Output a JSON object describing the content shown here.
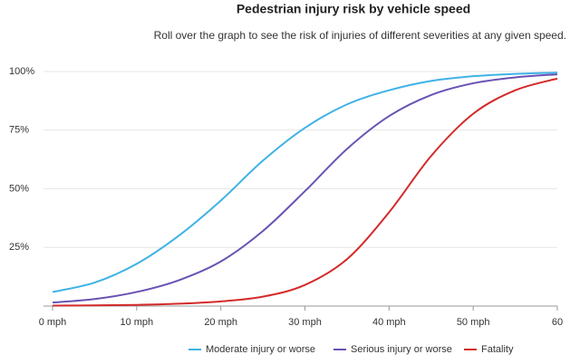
{
  "chart_data": {
    "type": "line",
    "title": "Pedestrian injury risk by vehicle speed",
    "subtitle": "Roll over the graph to see the risk of injuries of different severities at any given speed.",
    "x": [
      0,
      5,
      10,
      15,
      20,
      25,
      30,
      35,
      40,
      45,
      50,
      55,
      60
    ],
    "series": [
      {
        "name": "Moderate injury or worse",
        "color": "#3fb2e6",
        "values": [
          6,
          10,
          18,
          30,
          45,
          62,
          76,
          86,
          92,
          96,
          98,
          99,
          99.5
        ]
      },
      {
        "name": "Serious injury or worse",
        "color": "#6a52b3",
        "values": [
          1.5,
          3,
          6,
          11,
          19,
          32,
          49,
          67,
          81,
          90,
          95,
          97.5,
          98.8
        ]
      },
      {
        "name": "Fatality",
        "color": "#d42a2a",
        "values": [
          0.2,
          0.3,
          0.5,
          1,
          2,
          4,
          9,
          20,
          40,
          64,
          82,
          92,
          97
        ]
      }
    ],
    "xlim": [
      0,
      60
    ],
    "xticks": [
      {
        "value": 0,
        "label": "0 mph"
      },
      {
        "value": 10,
        "label": "10 mph"
      },
      {
        "value": 20,
        "label": "20 mph"
      },
      {
        "value": 30,
        "label": "30 mph"
      },
      {
        "value": 40,
        "label": "40 mph"
      },
      {
        "value": 50,
        "label": "50 mph"
      },
      60
    ],
    "ylim": [
      0,
      100
    ],
    "yticks": [
      {
        "value": 25,
        "label": "25%"
      },
      {
        "value": 50,
        "label": "50%"
      },
      {
        "value": 75,
        "label": "75%"
      },
      {
        "value": 100,
        "label": "100%"
      }
    ],
    "grid": true,
    "legend": "bottom"
  }
}
